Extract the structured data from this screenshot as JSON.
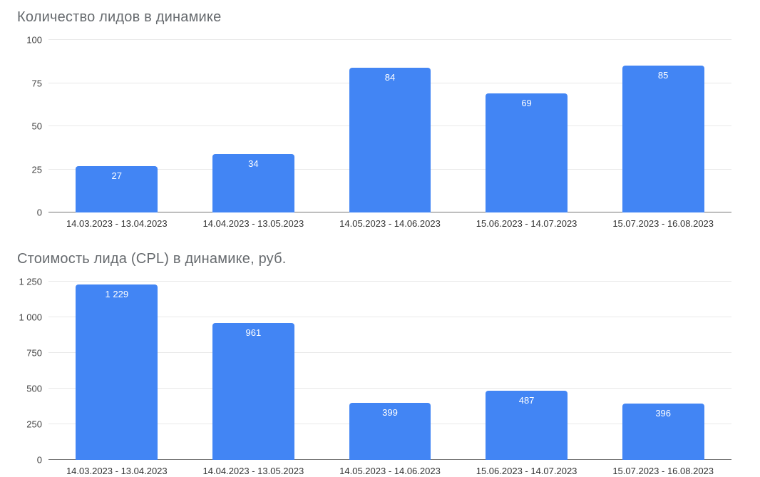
{
  "accent_color": "#4285f4",
  "chart_data": [
    {
      "type": "bar",
      "title": "Количество лидов в динамике",
      "categories": [
        "14.03.2023 - 13.04.2023",
        "14.04.2023 - 13.05.2023",
        "14.05.2023 - 14.06.2023",
        "15.06.2023 - 14.07.2023",
        "15.07.2023 - 16.08.2023"
      ],
      "values": [
        27,
        34,
        84,
        69,
        85
      ],
      "value_labels": [
        "27",
        "34",
        "84",
        "69",
        "85"
      ],
      "ylim": [
        0,
        100
      ],
      "yticks": [
        0,
        25,
        50,
        75,
        100
      ],
      "ytick_labels": [
        "0",
        "25",
        "50",
        "75",
        "100"
      ],
      "grid": true,
      "legend": "none",
      "bar_color": "#4285f4"
    },
    {
      "type": "bar",
      "title": "Стоимость лида (CPL) в динамике, руб.",
      "categories": [
        "14.03.2023 - 13.04.2023",
        "14.04.2023 - 13.05.2023",
        "14.05.2023 - 14.06.2023",
        "15.06.2023 - 14.07.2023",
        "15.07.2023 - 16.08.2023"
      ],
      "values": [
        1229,
        961,
        399,
        487,
        396
      ],
      "value_labels": [
        "1 229",
        "961",
        "399",
        "487",
        "396"
      ],
      "ylim": [
        0,
        1250
      ],
      "yticks": [
        0,
        250,
        500,
        750,
        1000,
        1250
      ],
      "ytick_labels": [
        "0",
        "250",
        "500",
        "750",
        "1 000",
        "1 250"
      ],
      "grid": true,
      "legend": "none",
      "bar_color": "#4285f4"
    }
  ]
}
